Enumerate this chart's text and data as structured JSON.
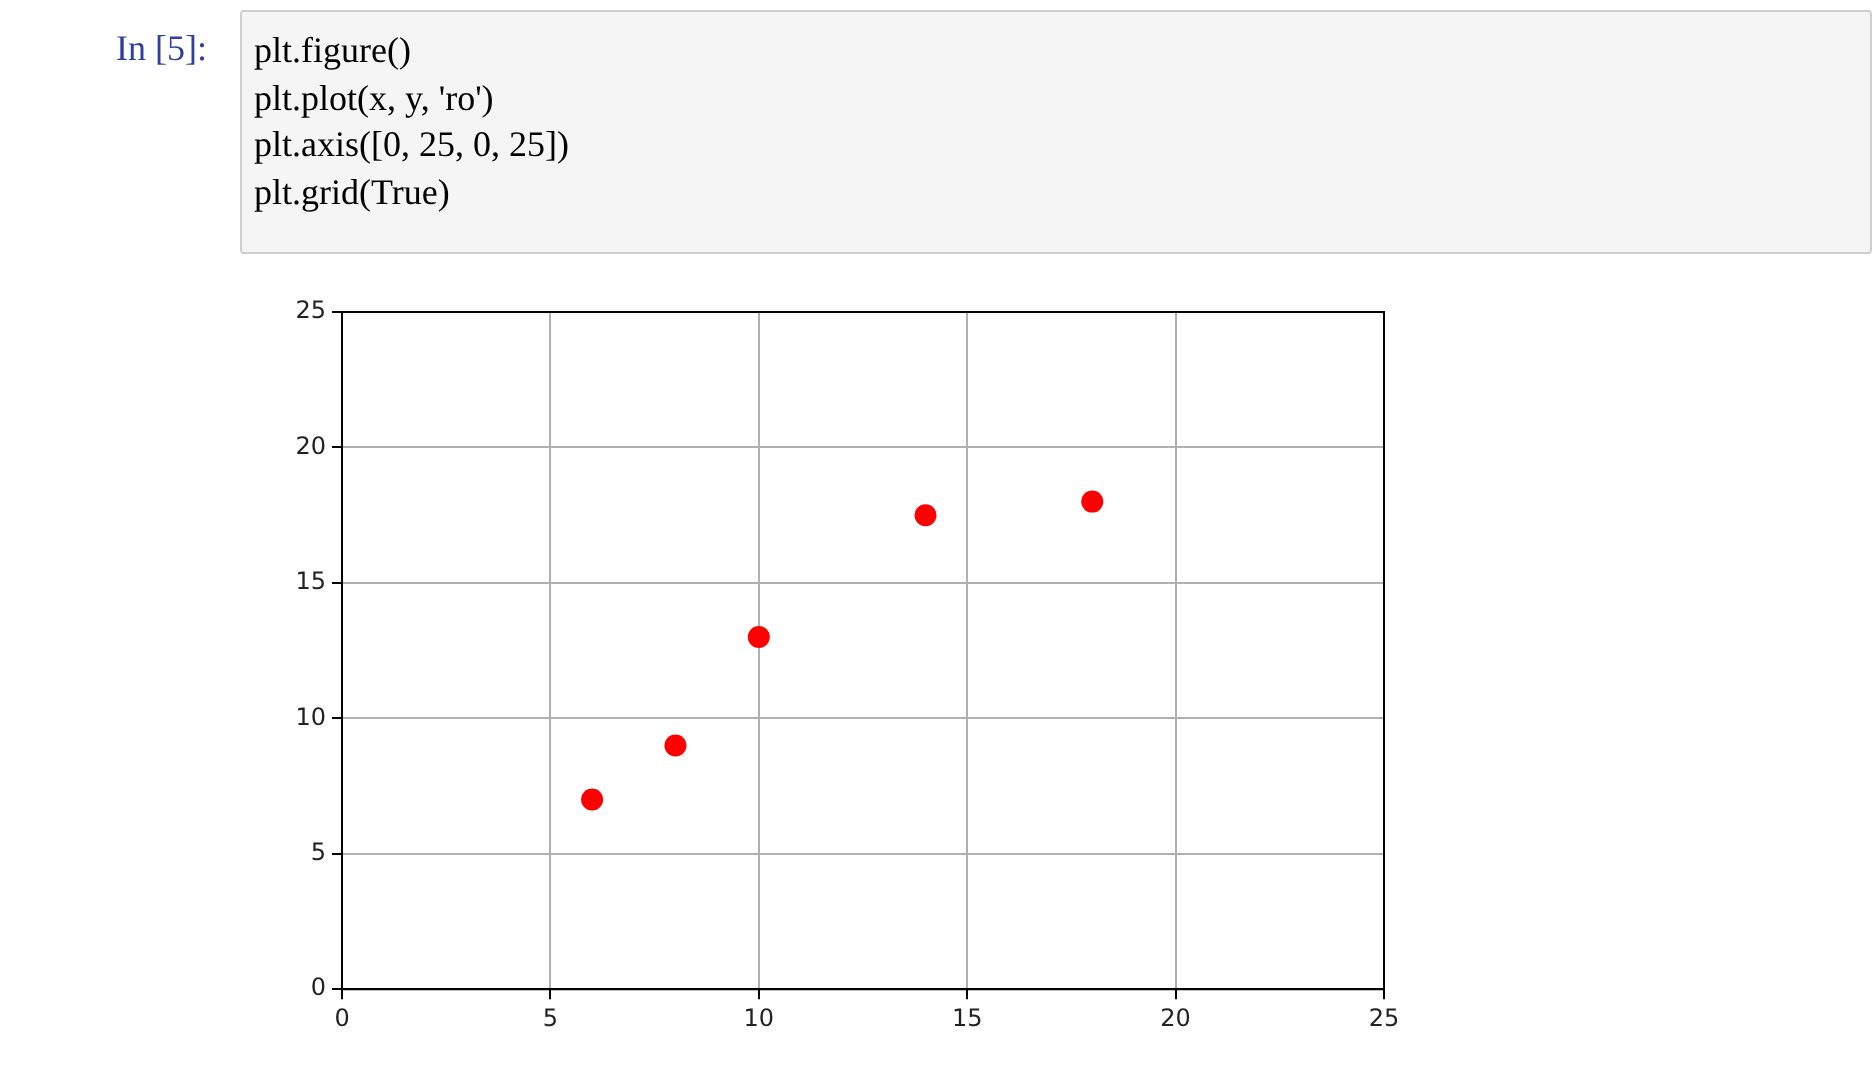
{
  "chart_data": {
    "type": "scatter",
    "annotations": [
      "In [5]:",
      "plt.figure()",
      "plt.plot(x, y, 'ro')",
      "plt.axis([0, 25, 0, 25])",
      "plt.grid(True)"
    ],
    "x": [
      6,
      8,
      10,
      14,
      18
    ],
    "series": [
      {
        "color": "#ff0000",
        "values": [
          7,
          9,
          13,
          17.5,
          18
        ]
      }
    ],
    "xlim": [
      0,
      25
    ],
    "ylim": [
      0,
      25
    ],
    "xticks": [
      0,
      5,
      10,
      15,
      20,
      25
    ],
    "yticks": [
      0,
      5,
      10,
      15,
      20,
      25
    ],
    "grid": true,
    "marker": "circle",
    "legend": false
  }
}
